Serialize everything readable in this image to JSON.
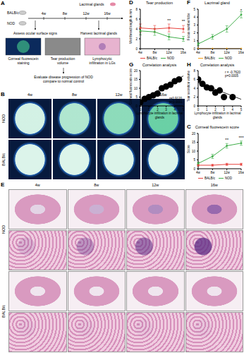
{
  "diagram": {
    "panel": "A",
    "strains": [
      "BALB/c",
      "NOD"
    ],
    "timepoints": [
      "4w",
      "8w",
      "12w",
      "16w"
    ],
    "organ": "Lacrimal glands",
    "assess": "Assess ocular surface signs",
    "harvest": "Harvest lacrimal glands",
    "methods": [
      "Corneal fluorescein staining",
      "Tear production volume",
      "Lymphocytic infiltration in LGs"
    ],
    "conclusion": "Evaluate disease progression of NOD compare to normal control"
  },
  "cornea_images": {
    "panel": "B",
    "rows": [
      "NOD",
      "BALB/c"
    ],
    "columns": [
      "4w",
      "8w",
      "12w",
      "16w"
    ]
  },
  "histology_images": {
    "panel": "E",
    "rows": [
      "NOD",
      "BALB/c"
    ],
    "columns": [
      "4w",
      "8w",
      "12w",
      "16w"
    ]
  },
  "chart_data": [
    {
      "panel": "D",
      "type": "line",
      "title": "Tear production",
      "y_label": "Wet thread length in mm",
      "categories": [
        "4w",
        "8w",
        "12w",
        "16w"
      ],
      "series": [
        {
          "name": "BALB/c",
          "color": "#e8413c",
          "values": [
            4.2,
            4.0,
            4.2,
            4.0
          ],
          "errors": [
            0.8,
            0.7,
            0.8,
            0.7
          ]
        },
        {
          "name": "NOD",
          "color": "#3fae49",
          "values": [
            3.6,
            3.4,
            2.4,
            2.0
          ],
          "errors": [
            0.8,
            0.7,
            0.6,
            0.5
          ]
        }
      ],
      "ylim": [
        0,
        8
      ],
      "yticks": [
        0,
        2,
        4,
        6,
        8
      ],
      "annotations": [
        {
          "x": "12w",
          "y": 5.8,
          "text": "**"
        },
        {
          "x": "16w",
          "y": 5.6,
          "text": "**"
        }
      ],
      "legend": "bottom"
    },
    {
      "panel": "F",
      "type": "line",
      "title": "Lacrimal gland",
      "y_label": "Focus number/lobe",
      "categories": [
        "4w",
        "8w",
        "12w",
        "16w"
      ],
      "series": [
        {
          "name": "BALB/c",
          "color": "#f39c12",
          "values": [
            0,
            0,
            0,
            0
          ],
          "errors": [
            0,
            0,
            0,
            0
          ]
        },
        {
          "name": "NOD",
          "color": "#3fae49",
          "values": [
            0.6,
            1.5,
            2.5,
            4.3
          ],
          "errors": [
            0.2,
            0.3,
            0.4,
            0.4
          ]
        }
      ],
      "ylim": [
        0,
        5
      ],
      "yticks": [
        0,
        1,
        2,
        3,
        4,
        5
      ],
      "annotations": [
        {
          "x": "16w",
          "y": 4.85,
          "text": "*"
        }
      ],
      "legend": "bottom"
    },
    {
      "panel": "G",
      "type": "scatter",
      "title": "Correlation analysis",
      "x_label": "Lymphocyte infiltration in lacrimal glands",
      "y_label": "Corneal fluorescein score",
      "x": [
        0,
        0.5,
        1,
        1.5,
        2,
        2.5,
        3,
        3.5,
        4,
        4.5
      ],
      "values": [
        2,
        4,
        5,
        6,
        7,
        10,
        11,
        12,
        14,
        15
      ],
      "fit": {
        "x": [
          0,
          5
        ],
        "y": [
          3,
          17
        ]
      },
      "xlim": [
        0,
        5
      ],
      "xticks": [
        0,
        1,
        2,
        3,
        4,
        5
      ],
      "ylim": [
        0,
        20
      ],
      "yticks": [
        0,
        5,
        10,
        15,
        20
      ],
      "color": "#000000",
      "annotations": [
        "r=0.9120",
        "p<0.0001"
      ]
    },
    {
      "panel": "H",
      "type": "scatter",
      "title": "Correlation analysis",
      "x_label": "Lymphocyte infiltration in lacrimal glands",
      "y_label": "Tear secretion volume",
      "x": [
        0,
        0.5,
        1,
        1.5,
        2,
        2.5,
        3,
        4
      ],
      "values": [
        6,
        5,
        4.2,
        4,
        3,
        3.5,
        2,
        2
      ],
      "fit": {
        "x": [
          0,
          5
        ],
        "y": [
          5.3,
          1.5
        ]
      },
      "xlim": [
        0,
        5
      ],
      "xticks": [
        0,
        1,
        2,
        3,
        4,
        5
      ],
      "ylim": [
        0,
        8
      ],
      "yticks": [
        0,
        2,
        4,
        6,
        8
      ],
      "color": "#000000",
      "annotations": [
        "r = -0.7620",
        "p=0.0005"
      ]
    },
    {
      "panel": "C",
      "type": "line",
      "title": "Corneal fluorescein score",
      "y_label": "Score",
      "categories": [
        "4w",
        "8w",
        "12w",
        "16w"
      ],
      "series": [
        {
          "name": "BALB/c",
          "color": "#e8413c",
          "values": [
            2,
            2,
            2.5,
            2.5
          ],
          "errors": [
            0.5,
            0.5,
            0.6,
            0.6
          ]
        },
        {
          "name": "NOD",
          "color": "#3fae49",
          "values": [
            3,
            7,
            13,
            14.5
          ],
          "errors": [
            0.8,
            1.2,
            1.3,
            1.2
          ]
        }
      ],
      "ylim": [
        0,
        20
      ],
      "yticks": [
        0,
        5,
        10,
        15,
        20
      ],
      "annotations": [
        {
          "x": "12w",
          "y": 16.5,
          "text": "**"
        },
        {
          "x": "16w",
          "y": 17.5,
          "text": "***"
        }
      ],
      "legend": "bottom"
    }
  ]
}
